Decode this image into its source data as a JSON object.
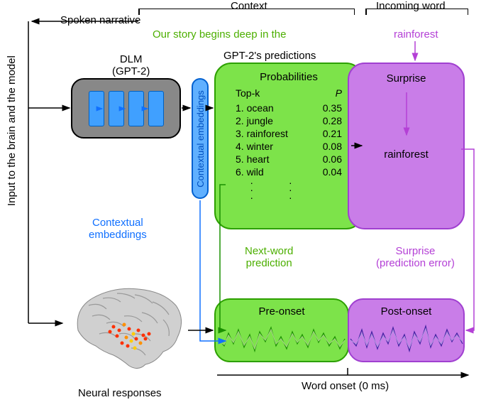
{
  "top": {
    "spoken_narrative_label": "Spoken narrative",
    "context_label": "Context",
    "incoming_word_label": "Incoming word",
    "context_text": "Our story begins deep in the",
    "incoming_word": "rainforest"
  },
  "side_label": "Input to the brain and the model",
  "dlm": {
    "title_line1": "DLM",
    "title_line2": "(GPT-2)"
  },
  "ctx_pill_label": "Contextual embeddings",
  "ctx_label": "Contextual\nembeddings",
  "predictions_title": "GPT-2's predictions",
  "probabilities": {
    "panel_title": "Probabilities",
    "col_topk": "Top-k",
    "col_p": "P",
    "rows": [
      {
        "rank": "1.",
        "word": "ocean",
        "p": "0.35"
      },
      {
        "rank": "2.",
        "word": "jungle",
        "p": "0.28"
      },
      {
        "rank": "3.",
        "word": "rainforest",
        "p": "0.21"
      },
      {
        "rank": "4.",
        "word": "winter",
        "p": "0.08"
      },
      {
        "rank": "5.",
        "word": "heart",
        "p": "0.06"
      },
      {
        "rank": "6.",
        "word": "wild",
        "p": "0.04"
      }
    ]
  },
  "surprise": {
    "panel_title": "Surprise",
    "result_word": "rainforest"
  },
  "below": {
    "nextword_label": "Next-word\nprediction",
    "surprise_error_label": "Surprise\n(prediction error)"
  },
  "preonset_label": "Pre-onset",
  "postonset_label": "Post-onset",
  "word_onset_label": "Word onset (0 ms)",
  "neural_label": "Neural responses",
  "colors": {
    "green_fill": "#7de34a",
    "green_stroke": "#2da000",
    "purple_fill": "#c97de8",
    "purple_stroke": "#a040d0",
    "gray_fill": "#888888",
    "blue_block": "#40a0ff",
    "blue_stroke": "#0060d0",
    "wave_green": "#1a9000",
    "wave_purple": "#4020a0"
  }
}
